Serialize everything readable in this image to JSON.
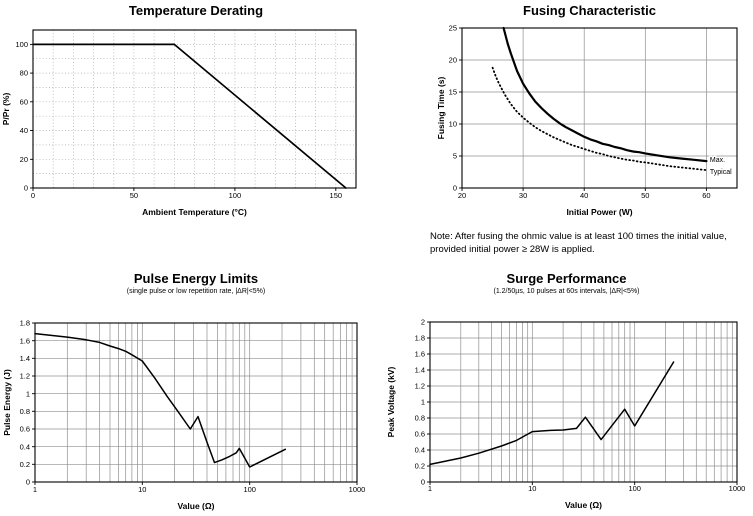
{
  "page": {
    "background": "#ffffff",
    "line_color": "#000000",
    "grid_color_solid": "#909090",
    "grid_color_dotted": "#a8a8a8"
  },
  "chart_data": [
    {
      "type": "line",
      "title": "Temperature Derating",
      "xlabel": "Ambient Temperature (°C)",
      "ylabel": "P/Pr (%)",
      "xscale": "linear",
      "xlim": [
        0,
        160
      ],
      "ylim": [
        0,
        110
      ],
      "grid": {
        "style": "dotted",
        "xstep": 10,
        "ystep": 10
      },
      "xticks": [
        {
          "v": 0,
          "label": "0"
        },
        {
          "v": 50,
          "label": "50"
        },
        {
          "v": 100,
          "label": "100"
        },
        {
          "v": 150,
          "label": "150"
        }
      ],
      "yticks": [
        {
          "v": 0,
          "label": "0"
        },
        {
          "v": 20,
          "label": "20"
        },
        {
          "v": 40,
          "label": "40"
        },
        {
          "v": 60,
          "label": "60"
        },
        {
          "v": 80,
          "label": "80"
        },
        {
          "v": 100,
          "label": "100"
        }
      ],
      "series": [
        {
          "name": "derating-limit",
          "style": "solid",
          "width": 1.7,
          "points": [
            [
              0,
              100
            ],
            [
              70,
              100
            ],
            [
              155,
              0
            ]
          ]
        }
      ]
    },
    {
      "type": "line",
      "title": "Fusing Characteristic",
      "xlabel": "Initial Power (W)",
      "ylabel": "Fusing Time (s)",
      "xscale": "linear",
      "xlim": [
        20,
        65
      ],
      "ylim": [
        0,
        25
      ],
      "grid": {
        "style": "solid",
        "xstep": 10,
        "ystep": 5
      },
      "xticks": [
        {
          "v": 20,
          "label": "20"
        },
        {
          "v": 30,
          "label": "30"
        },
        {
          "v": 40,
          "label": "40"
        },
        {
          "v": 50,
          "label": "50"
        },
        {
          "v": 60,
          "label": "60"
        }
      ],
      "yticks": [
        {
          "v": 0,
          "label": "0"
        },
        {
          "v": 5,
          "label": "5"
        },
        {
          "v": 10,
          "label": "10"
        },
        {
          "v": 15,
          "label": "15"
        },
        {
          "v": 20,
          "label": "20"
        },
        {
          "v": 25,
          "label": "25"
        }
      ],
      "series": [
        {
          "name": "Max.",
          "style": "solid",
          "width": 2.2,
          "points": [
            [
              26.8,
              25
            ],
            [
              27.5,
              22.5
            ],
            [
              28,
              21
            ],
            [
              29,
              18.3
            ],
            [
              30,
              16.3
            ],
            [
              31,
              14.8
            ],
            [
              32,
              13.5
            ],
            [
              33,
              12.5
            ],
            [
              34,
              11.6
            ],
            [
              35,
              10.8
            ],
            [
              36,
              10.1
            ],
            [
              37,
              9.5
            ],
            [
              38,
              9
            ],
            [
              39,
              8.5
            ],
            [
              40,
              8
            ],
            [
              41,
              7.6
            ],
            [
              42,
              7.3
            ],
            [
              43,
              6.9
            ],
            [
              44,
              6.7
            ],
            [
              45,
              6.4
            ],
            [
              46,
              6.2
            ],
            [
              47,
              5.9
            ],
            [
              48,
              5.7
            ],
            [
              49,
              5.6
            ],
            [
              50,
              5.4
            ],
            [
              52,
              5.1
            ],
            [
              54,
              4.8
            ],
            [
              56,
              4.6
            ],
            [
              58,
              4.4
            ],
            [
              60,
              4.2
            ]
          ]
        },
        {
          "name": "Typical",
          "style": "dotted",
          "width": 1.8,
          "points": [
            [
              25,
              18.8
            ],
            [
              25.5,
              17.5
            ],
            [
              26,
              16.4
            ],
            [
              27,
              14.6
            ],
            [
              28,
              13.1
            ],
            [
              29,
              11.9
            ],
            [
              30,
              11
            ],
            [
              31,
              10.2
            ],
            [
              32,
              9.5
            ],
            [
              33,
              8.9
            ],
            [
              34,
              8.4
            ],
            [
              35,
              7.9
            ],
            [
              36,
              7.5
            ],
            [
              37,
              7.1
            ],
            [
              38,
              6.7
            ],
            [
              39,
              6.4
            ],
            [
              40,
              6.1
            ],
            [
              41,
              5.8
            ],
            [
              42,
              5.5
            ],
            [
              43,
              5.3
            ],
            [
              44,
              5
            ],
            [
              45,
              4.8
            ],
            [
              46,
              4.6
            ],
            [
              47,
              4.4
            ],
            [
              48,
              4.3
            ],
            [
              49,
              4.1
            ],
            [
              50,
              4
            ],
            [
              52,
              3.7
            ],
            [
              54,
              3.4
            ],
            [
              56,
              3.2
            ],
            [
              58,
              3
            ],
            [
              60,
              2.8
            ]
          ]
        }
      ],
      "annotations": [
        {
          "text": "Max.",
          "x": 60.4,
          "y": 4.4
        },
        {
          "text": "Typical",
          "x": 60.4,
          "y": 2.6
        }
      ],
      "note_lines": [
        "Note: After fusing the ohmic value is at least 100 times the initial value,",
        "provided initial power ≥ 28W is applied."
      ]
    },
    {
      "type": "line",
      "title": "Pulse Energy Limits",
      "subtitle": "(single pulse or low repetition rate, |ΔR|<5%)",
      "xlabel": "Value (Ω)",
      "ylabel": "Pulse Energy (J)",
      "xscale": "log",
      "xlim": [
        1,
        1000
      ],
      "ylim": [
        0,
        1.8
      ],
      "grid": {
        "style": "solid",
        "ystep": 0.2
      },
      "xticks": [
        {
          "v": 1,
          "label": "1"
        },
        {
          "v": 10,
          "label": "10"
        },
        {
          "v": 100,
          "label": "100"
        },
        {
          "v": 1000,
          "label": "1000"
        }
      ],
      "yticks": [
        {
          "v": 0,
          "label": "0"
        },
        {
          "v": 0.2,
          "label": "0.2"
        },
        {
          "v": 0.4,
          "label": "0.4"
        },
        {
          "v": 0.6,
          "label": "0.6"
        },
        {
          "v": 0.8,
          "label": "0.8"
        },
        {
          "v": 1,
          "label": "1"
        },
        {
          "v": 1.2,
          "label": "1.2"
        },
        {
          "v": 1.4,
          "label": "1.4"
        },
        {
          "v": 1.6,
          "label": "1.6"
        },
        {
          "v": 1.8,
          "label": "1.8"
        }
      ],
      "series": [
        {
          "name": "pulse-energy-limit",
          "style": "solid",
          "width": 1.5,
          "points": [
            [
              1,
              1.68
            ],
            [
              2,
              1.64
            ],
            [
              3,
              1.61
            ],
            [
              4,
              1.58
            ],
            [
              5,
              1.54
            ],
            [
              6,
              1.51
            ],
            [
              7,
              1.48
            ],
            [
              8,
              1.44
            ],
            [
              10,
              1.37
            ],
            [
              13,
              1.18
            ],
            [
              17,
              0.97
            ],
            [
              22,
              0.78
            ],
            [
              28,
              0.6
            ],
            [
              33,
              0.74
            ],
            [
              40,
              0.45
            ],
            [
              47,
              0.22
            ],
            [
              55,
              0.25
            ],
            [
              65,
              0.29
            ],
            [
              75,
              0.33
            ],
            [
              80,
              0.38
            ],
            [
              100,
              0.17
            ],
            [
              215,
              0.37
            ]
          ]
        }
      ]
    },
    {
      "type": "line",
      "title": "Surge Performance",
      "subtitle": "(1.2/50µs, 10 pulses at 60s intervals, |ΔR|<5%)",
      "xlabel": "Value (Ω)",
      "ylabel": "Peak Voltage (kV)",
      "xscale": "log",
      "xlim": [
        1,
        1000
      ],
      "ylim": [
        0,
        2
      ],
      "grid": {
        "style": "solid",
        "ystep": 0.2
      },
      "xticks": [
        {
          "v": 1,
          "label": "1"
        },
        {
          "v": 10,
          "label": "10"
        },
        {
          "v": 100,
          "label": "100"
        },
        {
          "v": 1000,
          "label": "1000"
        }
      ],
      "yticks": [
        {
          "v": 0,
          "label": "0"
        },
        {
          "v": 0.2,
          "label": "0.2"
        },
        {
          "v": 0.4,
          "label": "0.4"
        },
        {
          "v": 0.6,
          "label": "0.6"
        },
        {
          "v": 0.8,
          "label": "0.8"
        },
        {
          "v": 1,
          "label": "1"
        },
        {
          "v": 1.2,
          "label": "1.2"
        },
        {
          "v": 1.4,
          "label": "1.4"
        },
        {
          "v": 1.6,
          "label": "1.6"
        },
        {
          "v": 1.8,
          "label": "1.8"
        },
        {
          "v": 2,
          "label": "2"
        }
      ],
      "series": [
        {
          "name": "surge-peak-voltage",
          "style": "solid",
          "width": 1.5,
          "points": [
            [
              1,
              0.22
            ],
            [
              2,
              0.3
            ],
            [
              3,
              0.36
            ],
            [
              5,
              0.45
            ],
            [
              7,
              0.52
            ],
            [
              10,
              0.63
            ],
            [
              15,
              0.645
            ],
            [
              20,
              0.65
            ],
            [
              27,
              0.67
            ],
            [
              33,
              0.81
            ],
            [
              47,
              0.53
            ],
            [
              80,
              0.91
            ],
            [
              100,
              0.7
            ],
            [
              240,
              1.5
            ]
          ]
        }
      ]
    }
  ]
}
